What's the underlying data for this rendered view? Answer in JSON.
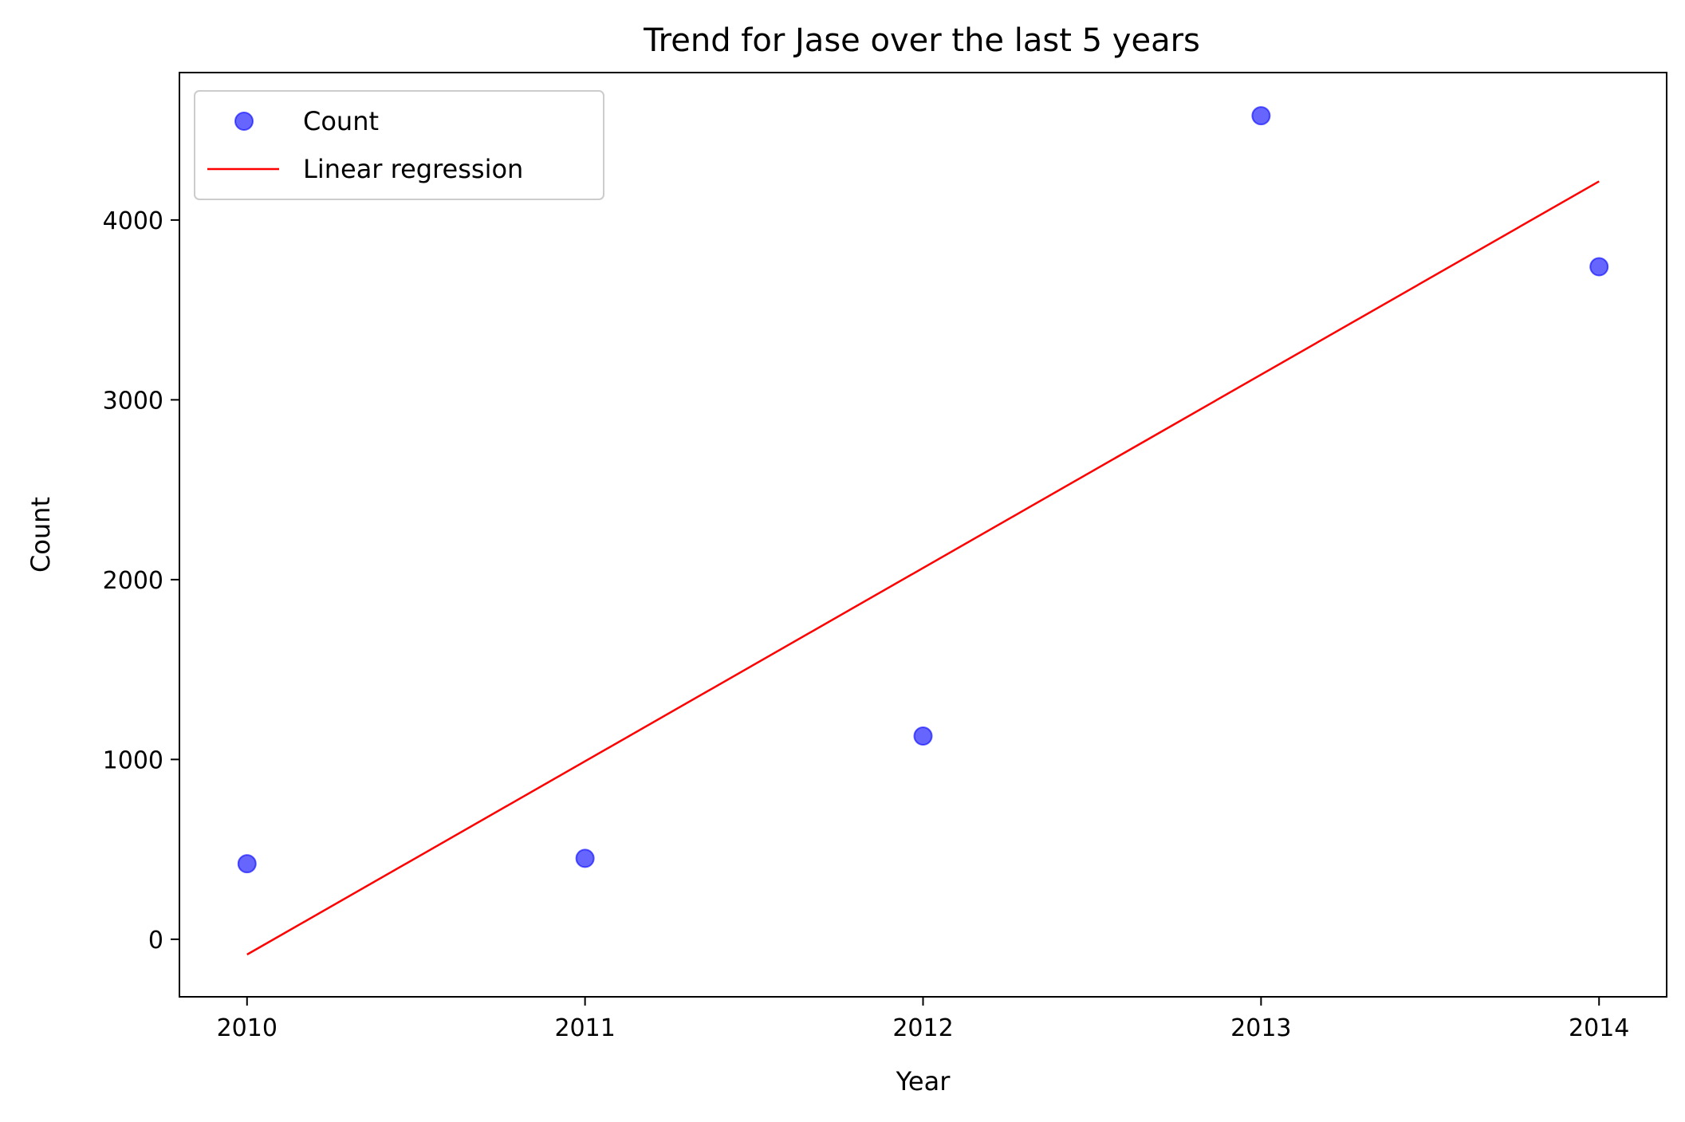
{
  "chart_data": {
    "type": "scatter",
    "title": "Trend for Jase over the last 5 years",
    "xlabel": "Year",
    "ylabel": "Count",
    "xlim": [
      2009.8,
      2014.2
    ],
    "ylim": [
      -320,
      4820
    ],
    "xticks": [
      2010,
      2011,
      2012,
      2013,
      2014
    ],
    "yticks": [
      0,
      1000,
      2000,
      3000,
      4000
    ],
    "grid": false,
    "legend_position": "top-left",
    "colors": {
      "points": "#0000ff",
      "line": "#ff0000"
    },
    "series": [
      {
        "name": "Count",
        "type": "scatter",
        "x": [
          2010,
          2011,
          2012,
          2013,
          2014
        ],
        "y": [
          420,
          450,
          1130,
          4580,
          3740
        ]
      },
      {
        "name": "Linear regression",
        "type": "line",
        "x": [
          2010,
          2014
        ],
        "y": [
          -85,
          4215
        ]
      }
    ]
  }
}
